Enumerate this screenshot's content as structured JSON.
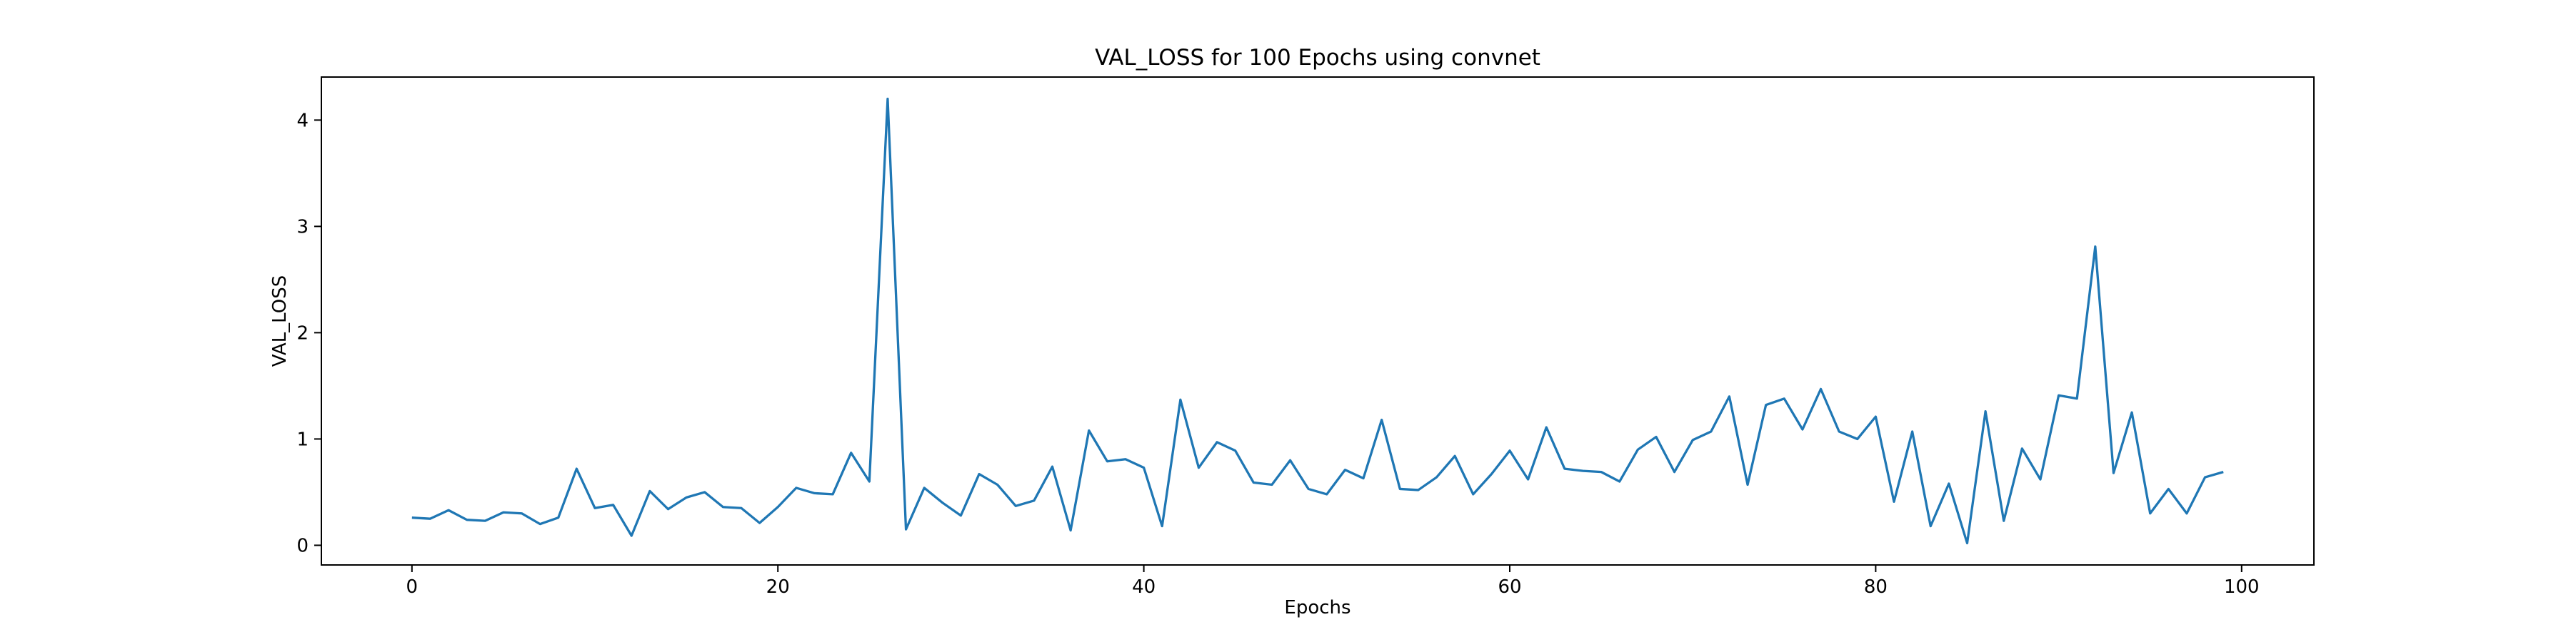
{
  "chart_data": {
    "type": "line",
    "title": "VAL_LOSS for 100 Epochs using convnet",
    "xlabel": "Epochs",
    "ylabel": "VAL_LOSS",
    "xlim": [
      -4.95,
      103.95
    ],
    "ylim": [
      -0.185,
      4.405
    ],
    "xticks": [
      0,
      20,
      40,
      60,
      80,
      100
    ],
    "yticks": [
      0,
      1,
      2,
      3,
      4
    ],
    "grid": false,
    "line_color": "#1f77b4",
    "series": [
      {
        "x": [
          0,
          1,
          2,
          3,
          4,
          5,
          6,
          7,
          8,
          9,
          10,
          11,
          12,
          13,
          14,
          15,
          16,
          17,
          18,
          19,
          20,
          21,
          22,
          23,
          24,
          25,
          26,
          27,
          28,
          29,
          30,
          31,
          32,
          33,
          34,
          35,
          36,
          37,
          38,
          39,
          40,
          41,
          42,
          43,
          44,
          45,
          46,
          47,
          48,
          49,
          50,
          51,
          52,
          53,
          54,
          55,
          56,
          57,
          58,
          59,
          60,
          61,
          62,
          63,
          64,
          65,
          66,
          67,
          68,
          69,
          70,
          71,
          72,
          73,
          74,
          75,
          76,
          77,
          78,
          79,
          80,
          81,
          82,
          83,
          84,
          85,
          86,
          87,
          88,
          89,
          90,
          91,
          92,
          93,
          94,
          95,
          96,
          97,
          98,
          99
        ],
        "values": [
          0.26,
          0.25,
          0.33,
          0.24,
          0.23,
          0.31,
          0.3,
          0.2,
          0.26,
          0.72,
          0.35,
          0.38,
          0.09,
          0.51,
          0.34,
          0.45,
          0.5,
          0.36,
          0.35,
          0.21,
          0.36,
          0.54,
          0.49,
          0.48,
          0.87,
          0.6,
          4.2,
          0.15,
          0.54,
          0.4,
          0.28,
          0.67,
          0.57,
          0.37,
          0.42,
          0.74,
          0.14,
          1.08,
          0.79,
          0.81,
          0.73,
          0.18,
          1.37,
          0.73,
          0.97,
          0.89,
          0.59,
          0.57,
          0.8,
          0.53,
          0.48,
          0.71,
          0.63,
          1.18,
          0.53,
          0.52,
          0.64,
          0.84,
          0.48,
          0.67,
          0.89,
          0.62,
          1.11,
          0.72,
          0.7,
          0.69,
          0.6,
          0.9,
          1.02,
          0.69,
          0.99,
          1.07,
          1.4,
          0.57,
          1.32,
          1.38,
          1.09,
          1.47,
          1.07,
          1.0,
          1.21,
          0.41,
          1.07,
          0.18,
          0.58,
          0.02,
          1.26,
          0.23,
          0.91,
          0.62,
          1.41,
          1.38,
          2.81,
          0.68,
          1.25,
          0.3,
          0.53,
          0.3,
          0.64,
          0.69
        ]
      }
    ]
  }
}
